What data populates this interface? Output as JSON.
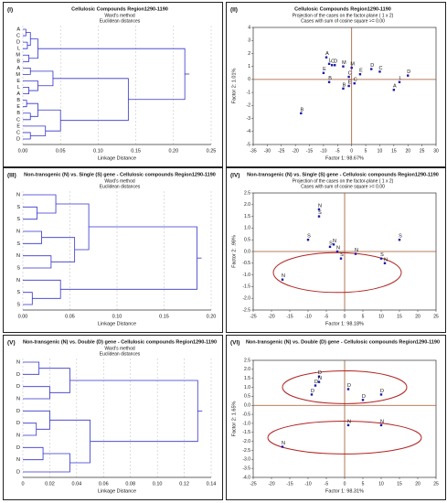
{
  "chart_data": [
    {
      "type": "dendrogram",
      "panel_label": "(I)",
      "title": "Cellulosic Compounds Region1290-1190",
      "subtitle": "Ward's method",
      "note": "Euclidean distances",
      "x_label": "Linkage Distance",
      "color": "#3333cc",
      "xlim": [
        0,
        0.25
      ],
      "xticks": [
        {
          "value": 0,
          "label": "0.00"
        },
        0.05,
        {
          "value": 0.1,
          "label": "0.10"
        },
        0.15,
        {
          "value": 0.2,
          "label": "0.20"
        },
        0.25
      ],
      "tree": {
        "height": 0.215,
        "children": [
          {
            "height": 0.02,
            "children": [
              {
                "height": 0.01,
                "children": [
                  {
                    "height": 0.004,
                    "children": [
                      {
                        "label": "A"
                      },
                      {
                        "label": "C"
                      }
                    ]
                  },
                  {
                    "height": 0.006,
                    "children": [
                      {
                        "label": "D"
                      },
                      {
                        "label": "L"
                      }
                    ]
                  }
                ]
              },
              {
                "height": 0.008,
                "children": [
                  {
                    "label": "M"
                  },
                  {
                    "label": "B"
                  }
                ]
              }
            ]
          },
          {
            "height": 0.14,
            "children": [
              {
                "height": 0.04,
                "children": [
                  {
                    "height": 0.01,
                    "children": [
                      {
                        "label": "A"
                      },
                      {
                        "label": "M"
                      }
                    ]
                  },
                  {
                    "height": 0.02,
                    "children": [
                      {
                        "label": "E"
                      },
                      {
                        "height": 0.008,
                        "children": [
                          {
                            "label": "L"
                          },
                          {
                            "label": "A"
                          }
                        ]
                      }
                    ]
                  }
                ]
              },
              {
                "height": 0.05,
                "children": [
                  {
                    "height": 0.02,
                    "children": [
                      {
                        "height": 0.005,
                        "children": [
                          {
                            "label": "B"
                          },
                          {
                            "label": "E"
                          }
                        ]
                      },
                      {
                        "height": 0.01,
                        "children": [
                          {
                            "label": "B"
                          },
                          {
                            "label": "C"
                          }
                        ]
                      }
                    ]
                  },
                  {
                    "height": 0.03,
                    "children": [
                      {
                        "label": "E"
                      },
                      {
                        "height": 0.01,
                        "children": [
                          {
                            "label": "C"
                          },
                          {
                            "label": "D"
                          }
                        ]
                      }
                    ]
                  }
                ]
              }
            ]
          }
        ]
      }
    },
    {
      "type": "scatter",
      "panel_label": "(II)",
      "title": "Cellulosic Compounds Region1290-1190",
      "subtitle": "Projection of the cases on the factor-plane ( 1 x 2)",
      "note": "Cases with sum of cosine square >= 0.00",
      "x_label": "Factor 1: 98.67%",
      "y_label": "Factor 2: 1.01%",
      "color": "#1a1aa8",
      "xlim": [
        -35,
        30
      ],
      "xticks": [
        -35,
        -30,
        -25,
        -20,
        -15,
        -10,
        -5,
        0,
        5,
        10,
        15,
        20,
        25,
        30
      ],
      "ylim": [
        -5,
        4
      ],
      "yticks": [
        -5,
        -4,
        -3,
        -2,
        -1,
        0,
        1,
        2,
        3,
        4
      ],
      "points": [
        {
          "x": -9,
          "y": 1.7,
          "label": "A"
        },
        {
          "x": -8,
          "y": 1.2,
          "label": "L"
        },
        {
          "x": -10,
          "y": 0.5,
          "label": "E"
        },
        {
          "x": -7,
          "y": 1.1,
          "label": "C"
        },
        {
          "x": -6,
          "y": 1.1,
          "label": "D"
        },
        {
          "x": -3,
          "y": 1.0,
          "label": "M"
        },
        {
          "x": -8,
          "y": -0.2,
          "label": "B"
        },
        {
          "x": -1,
          "y": 0.2,
          "label": "C"
        },
        {
          "x": 0,
          "y": 0.9,
          "label": "M"
        },
        {
          "x": -1,
          "y": -0.5,
          "label": "E"
        },
        {
          "x": -3,
          "y": -0.7,
          "label": "B"
        },
        {
          "x": 1,
          "y": -0.3,
          "label": "C"
        },
        {
          "x": 3,
          "y": 0.4,
          "label": "E"
        },
        {
          "x": 7,
          "y": 0.8,
          "label": "D"
        },
        {
          "x": 10,
          "y": 0.6,
          "label": "C"
        },
        {
          "x": 15,
          "y": -0.8,
          "label": "A"
        },
        {
          "x": 17,
          "y": -0.2,
          "label": "L"
        },
        {
          "x": 20,
          "y": 0.3,
          "label": "D"
        },
        {
          "x": -18,
          "y": -2.6,
          "label": "B"
        }
      ]
    },
    {
      "type": "dendrogram",
      "panel_label": "(III)",
      "title": "Non-transgenic (N) vs. Single (S) gene - Cellulosic compounds Region1290-1190",
      "subtitle": "Ward's method",
      "note": "Euclidean distances",
      "x_label": "Linkage Distance",
      "color": "#3333cc",
      "xlim": [
        0,
        0.2
      ],
      "xticks": [
        {
          "value": 0,
          "label": "0.00"
        },
        0.05,
        {
          "value": 0.1,
          "label": "0.10"
        },
        0.15,
        {
          "value": 0.2,
          "label": "0.20"
        }
      ],
      "tree": {
        "height": 0.185,
        "children": [
          {
            "height": 0.07,
            "children": [
              {
                "height": 0.035,
                "children": [
                  {
                    "label": "N"
                  },
                  {
                    "height": 0.015,
                    "children": [
                      {
                        "label": "S"
                      },
                      {
                        "label": "S"
                      }
                    ]
                  }
                ]
              },
              {
                "height": 0.055,
                "children": [
                  {
                    "height": 0.02,
                    "children": [
                      {
                        "label": "N"
                      },
                      {
                        "label": "S"
                      }
                    ]
                  },
                  {
                    "height": 0.03,
                    "children": [
                      {
                        "label": "N"
                      },
                      {
                        "label": "S"
                      }
                    ]
                  }
                ]
              }
            ]
          },
          {
            "height": 0.04,
            "children": [
              {
                "label": "N"
              },
              {
                "height": 0.01,
                "children": [
                  {
                    "label": "S"
                  },
                  {
                    "label": "S"
                  }
                ]
              }
            ]
          }
        ]
      }
    },
    {
      "type": "scatter",
      "panel_label": "(IV)",
      "title": "Non-transgenic (N) vs. Single (S) gene - Cellulosic compounds Region1290-1190",
      "subtitle": "Projection of the cases on the factor-plane ( 1 x 2)",
      "note": "Cases with sum of cosine square >= 0.00",
      "x_label": "Factor 1: 98.18%",
      "y_label": "Factor 2: .98%",
      "color": "#1a1aa8",
      "xlim": [
        -25,
        25
      ],
      "xticks": [
        -25,
        -20,
        -15,
        -10,
        -5,
        0,
        5,
        10,
        15,
        20,
        25
      ],
      "ylim": [
        -2.5,
        2.5
      ],
      "yticks": [
        2.5,
        {
          "value": 2,
          "label": "2.0"
        },
        1.5,
        {
          "value": 1,
          "label": "1.0"
        },
        0.5,
        {
          "value": 0,
          "label": "0.0"
        },
        -0.5,
        {
          "value": -1,
          "label": "-1.0"
        },
        -1.5,
        {
          "value": -2,
          "label": "-2.0"
        },
        -2.5
      ],
      "points": [
        {
          "x": -7,
          "y": 1.8,
          "label": "N"
        },
        {
          "x": -7,
          "y": 1.5,
          "label": "S"
        },
        {
          "x": -10,
          "y": 0.5,
          "label": "S"
        },
        {
          "x": -4,
          "y": 0.2,
          "label": "S"
        },
        {
          "x": -3,
          "y": 0.3,
          "label": "N"
        },
        {
          "x": -2,
          "y": 0,
          "label": "N"
        },
        {
          "x": -1,
          "y": -0.3,
          "label": "S"
        },
        {
          "x": 3,
          "y": -0.1,
          "label": "N"
        },
        {
          "x": 10,
          "y": -0.3,
          "label": "S"
        },
        {
          "x": 11,
          "y": -0.5,
          "label": "N"
        },
        {
          "x": 15,
          "y": 0.5,
          "label": "S"
        },
        {
          "x": -17,
          "y": -1.2,
          "label": "N"
        }
      ]
    },
    {
      "type": "dendrogram",
      "panel_label": "(V)",
      "title": "Non-transgenic (N) vs. Double (D) gene - Cellulosic compounds Region1290-1190",
      "subtitle": "Ward's method",
      "note": "Euclidean distances",
      "x_label": "Linkage Distance",
      "color": "#3333cc",
      "xlim": [
        0,
        0.14
      ],
      "xticks": [
        0,
        0.02,
        0.04,
        0.06,
        0.08,
        {
          "value": 0.1,
          "label": "0.10"
        },
        0.12,
        0.14
      ],
      "tree": {
        "height": 0.13,
        "children": [
          {
            "height": 0.035,
            "children": [
              {
                "height": 0.012,
                "children": [
                  {
                    "label": "N"
                  },
                  {
                    "label": "D"
                  }
                ]
              },
              {
                "height": 0.02,
                "children": [
                  {
                    "label": "D"
                  },
                  {
                    "label": "N"
                  }
                ]
              }
            ]
          },
          {
            "height": 0.05,
            "children": [
              {
                "height": 0.02,
                "children": [
                  {
                    "label": "D"
                  },
                  {
                    "height": 0.01,
                    "children": [
                      {
                        "label": "D"
                      },
                      {
                        "label": "N"
                      }
                    ]
                  }
                ]
              },
              {
                "height": 0.035,
                "children": [
                  {
                    "height": 0.015,
                    "children": [
                      {
                        "label": "D"
                      },
                      {
                        "label": "N"
                      }
                    ]
                  },
                  {
                    "label": "D"
                  }
                ]
              }
            ]
          }
        ]
      }
    },
    {
      "type": "scatter",
      "panel_label": "(VI)",
      "title": "Non-transgenic (N) vs. Double (D) gene - Cellulosic compounds Region1290-1190",
      "x_label": "Factor 1: 98.31%",
      "y_label": "Factor 2: 1.65%",
      "color": "#1a1aa8",
      "xlim": [
        -25,
        25
      ],
      "xticks": [
        -25,
        -20,
        -15,
        -10,
        -5,
        0,
        5,
        10,
        15,
        20,
        25
      ],
      "ylim": [
        -4,
        2.5
      ],
      "yticks": [
        2.5,
        {
          "value": 2,
          "label": "2.0"
        },
        1.5,
        {
          "value": 1,
          "label": "1.0"
        },
        0.5,
        {
          "value": 0,
          "label": "0.0"
        },
        -0.5,
        {
          "value": -1,
          "label": "-1.0"
        },
        -1.5,
        {
          "value": -2,
          "label": "-2.0"
        },
        -2.5,
        {
          "value": -3,
          "label": "-3.0"
        },
        -3.5,
        {
          "value": -4,
          "label": "-4.0"
        }
      ],
      "points": [
        {
          "x": -7,
          "y": 1.6,
          "label": "D"
        },
        {
          "x": -7,
          "y": 1.3,
          "label": "N"
        },
        {
          "x": -8,
          "y": 1.1,
          "label": "D"
        },
        {
          "x": -9,
          "y": 0.6,
          "label": "D"
        },
        {
          "x": 1,
          "y": 0.9,
          "label": "D"
        },
        {
          "x": 5,
          "y": 0.3,
          "label": "D"
        },
        {
          "x": 10,
          "y": 0.6,
          "label": "D"
        },
        {
          "x": 1,
          "y": -1.1,
          "label": "N"
        },
        {
          "x": -17,
          "y": -2.3,
          "label": "N"
        },
        {
          "x": 10,
          "y": -1.1,
          "label": "N"
        }
      ]
    }
  ]
}
